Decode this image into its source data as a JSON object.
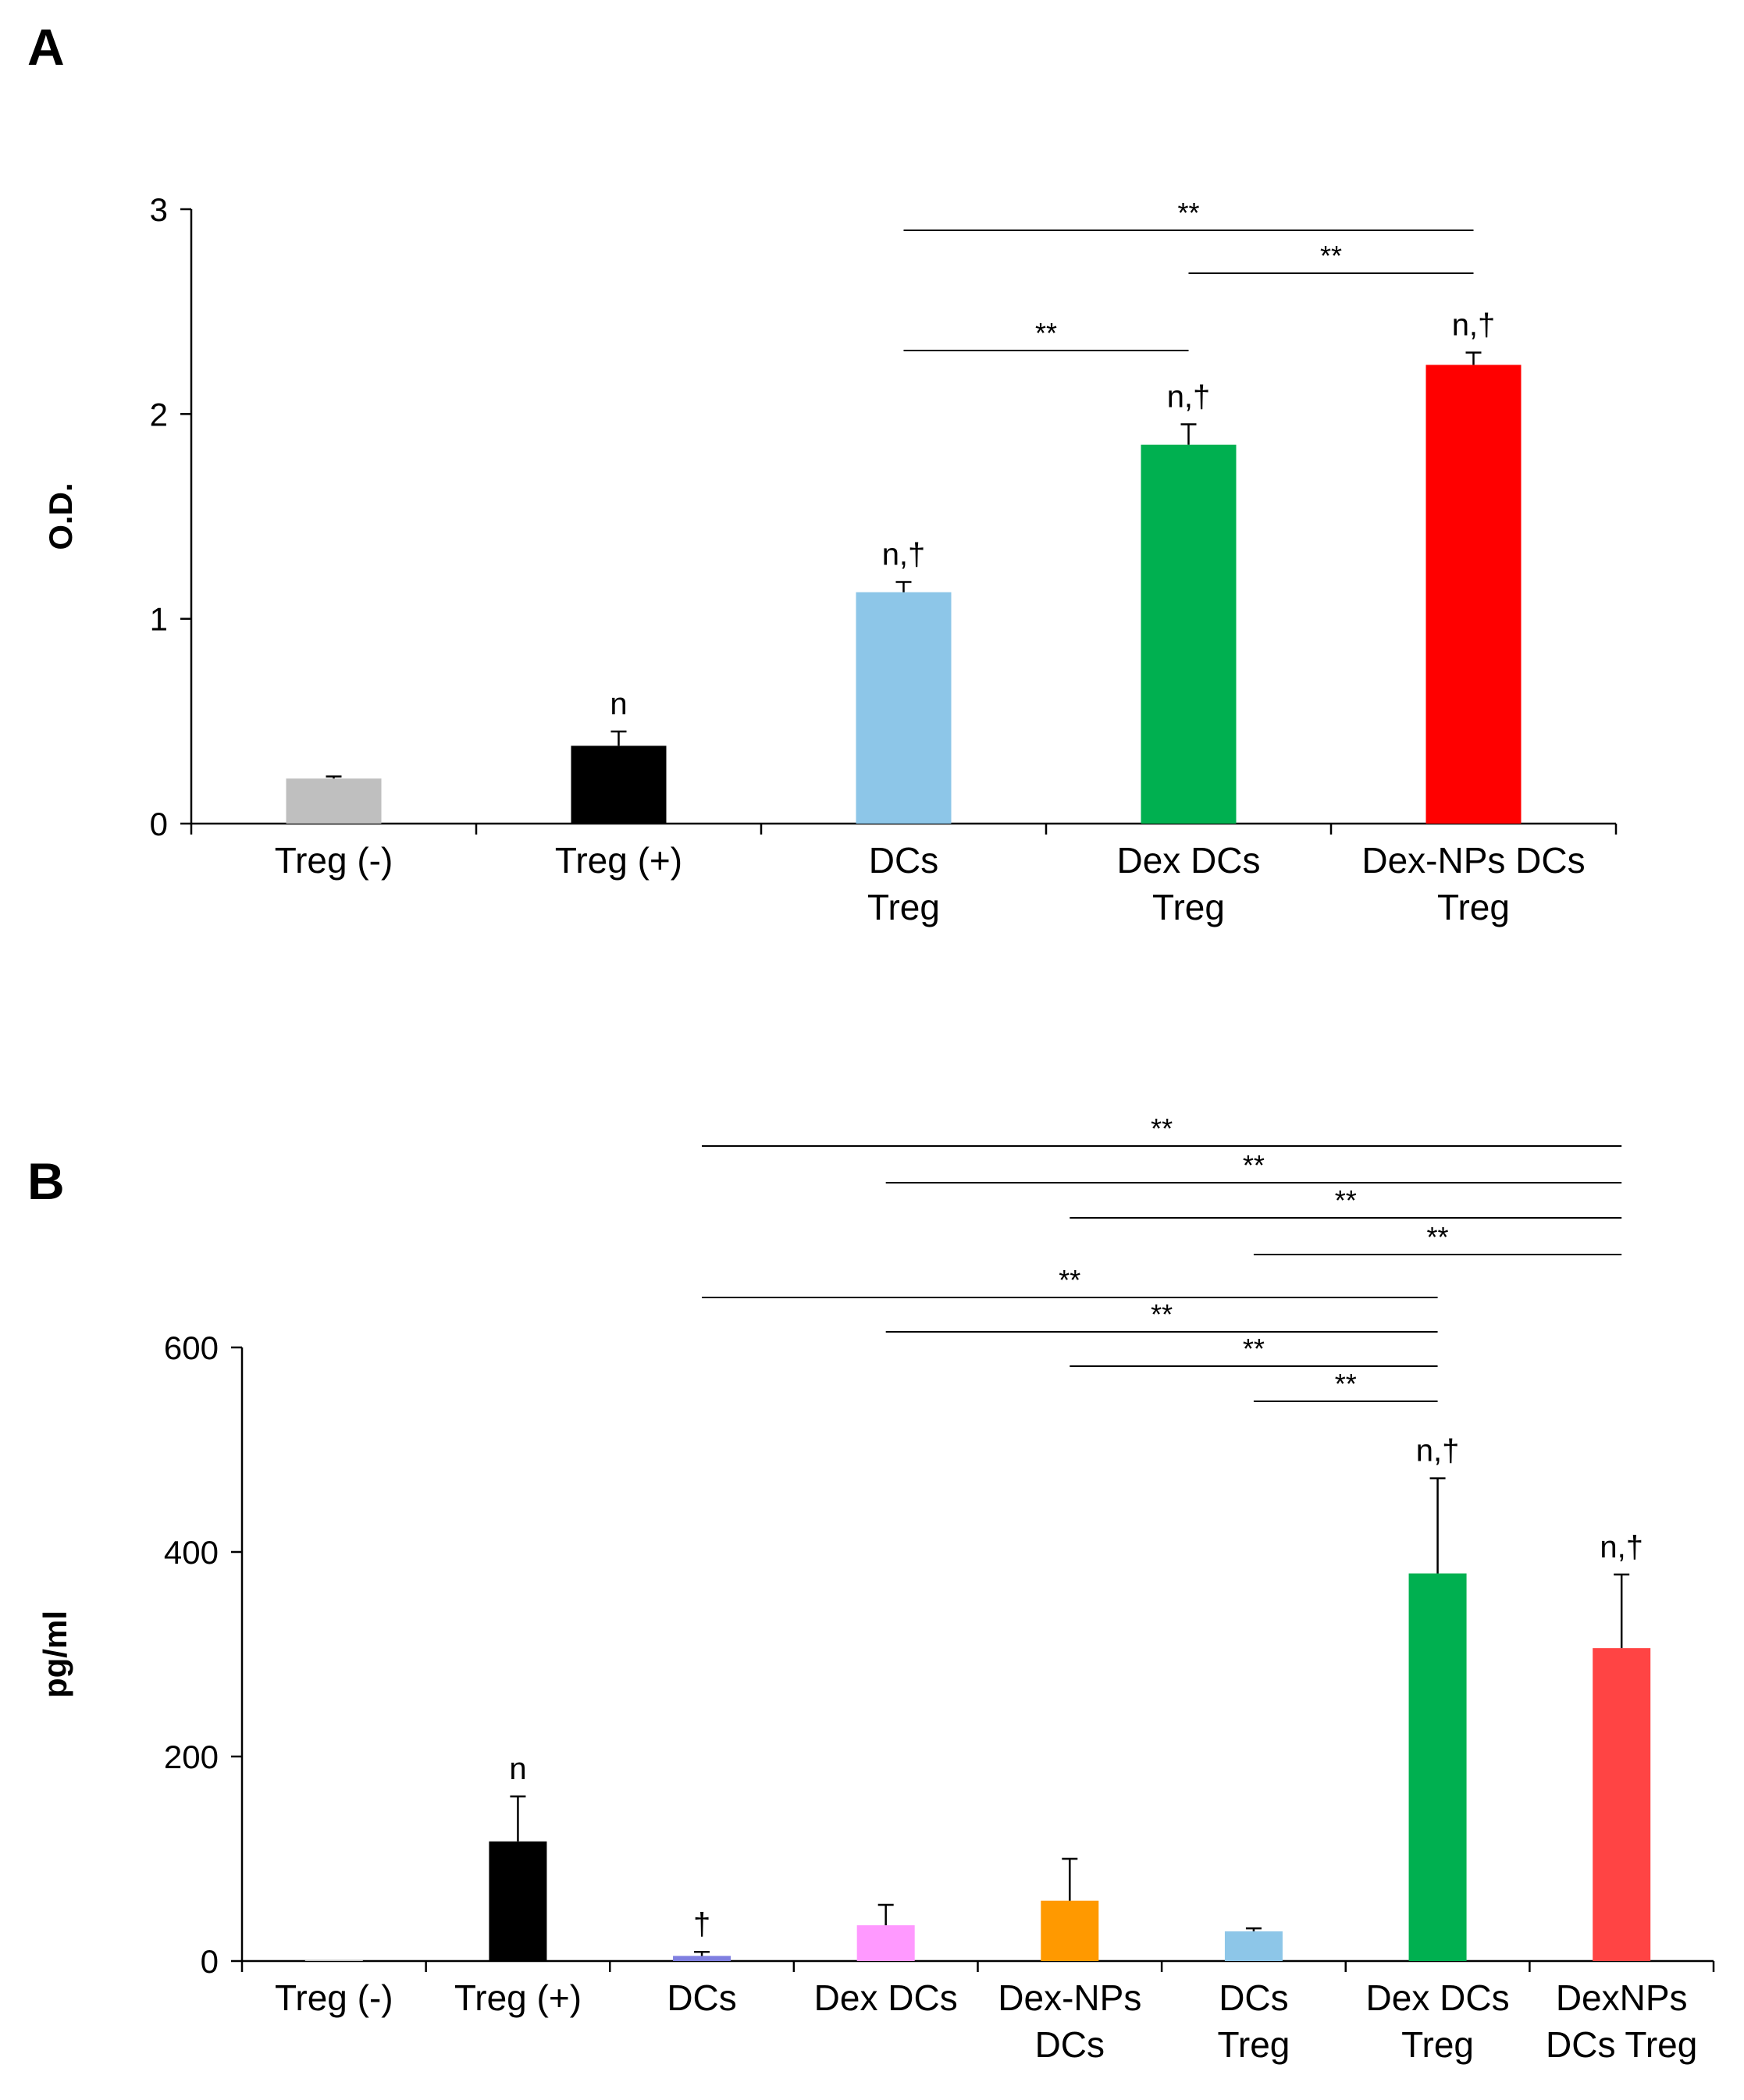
{
  "chart_data": [
    {
      "panel": "A",
      "type": "bar",
      "ylabel": "O.D.",
      "ylim": [
        0,
        3
      ],
      "yticks": [
        "0",
        "1",
        "2",
        "3"
      ],
      "categories": [
        [
          "Treg (-)"
        ],
        [
          "Treg (+)"
        ],
        [
          "DCs",
          "Treg"
        ],
        [
          "Dex DCs",
          "Treg"
        ],
        [
          "Dex-NPs DCs",
          "Treg"
        ]
      ],
      "values": [
        0.22,
        0.38,
        1.13,
        1.85,
        2.24
      ],
      "errors": [
        0.01,
        0.07,
        0.05,
        0.1,
        0.06
      ],
      "colors": [
        "#bfbfbf",
        "#000000",
        "#8dc6e8",
        "#00b050",
        "#ff0000"
      ],
      "marks": [
        "",
        "n",
        "n,†",
        "n,†",
        "n,†"
      ],
      "significance": [
        {
          "from": 2,
          "to": 4,
          "label": "**"
        },
        {
          "from": 3,
          "to": 4,
          "label": "**"
        },
        {
          "from": 2,
          "to": 3,
          "label": "**"
        }
      ]
    },
    {
      "panel": "B",
      "type": "bar",
      "ylabel": "pg/ml",
      "ylim": [
        0,
        600
      ],
      "yticks": [
        "0",
        "200",
        "400",
        "600"
      ],
      "categories": [
        [
          "Treg (-)"
        ],
        [
          "Treg (+)"
        ],
        [
          "DCs"
        ],
        [
          "Dex DCs"
        ],
        [
          "Dex-NPs",
          "DCs"
        ],
        [
          "DCs",
          "Treg"
        ],
        [
          "Dex DCs",
          "Treg"
        ],
        [
          "DexNPs",
          "DCs Treg"
        ]
      ],
      "values": [
        1,
        117,
        5,
        35,
        59,
        29,
        379,
        306
      ],
      "errors": [
        0,
        44,
        4,
        20,
        41,
        3,
        93,
        72
      ],
      "colors": [
        "#bfbfbf",
        "#000000",
        "#7f7fe0",
        "#ff99ff",
        "#ff9900",
        "#8dc6e8",
        "#00b050",
        "#ff4444"
      ],
      "marks": [
        "",
        "n",
        "†",
        "",
        "",
        "",
        "n,†",
        "n,†"
      ],
      "significance": [
        {
          "from": 2,
          "to": 7,
          "label": "**"
        },
        {
          "from": 3,
          "to": 7,
          "label": "**"
        },
        {
          "from": 4,
          "to": 7,
          "label": "**"
        },
        {
          "from": 5,
          "to": 7,
          "label": "**"
        },
        {
          "from": 2,
          "to": 6,
          "label": "**"
        },
        {
          "from": 3,
          "to": 6,
          "label": "**"
        },
        {
          "from": 4,
          "to": 6,
          "label": "**"
        },
        {
          "from": 5,
          "to": 6,
          "label": "**"
        }
      ]
    }
  ]
}
